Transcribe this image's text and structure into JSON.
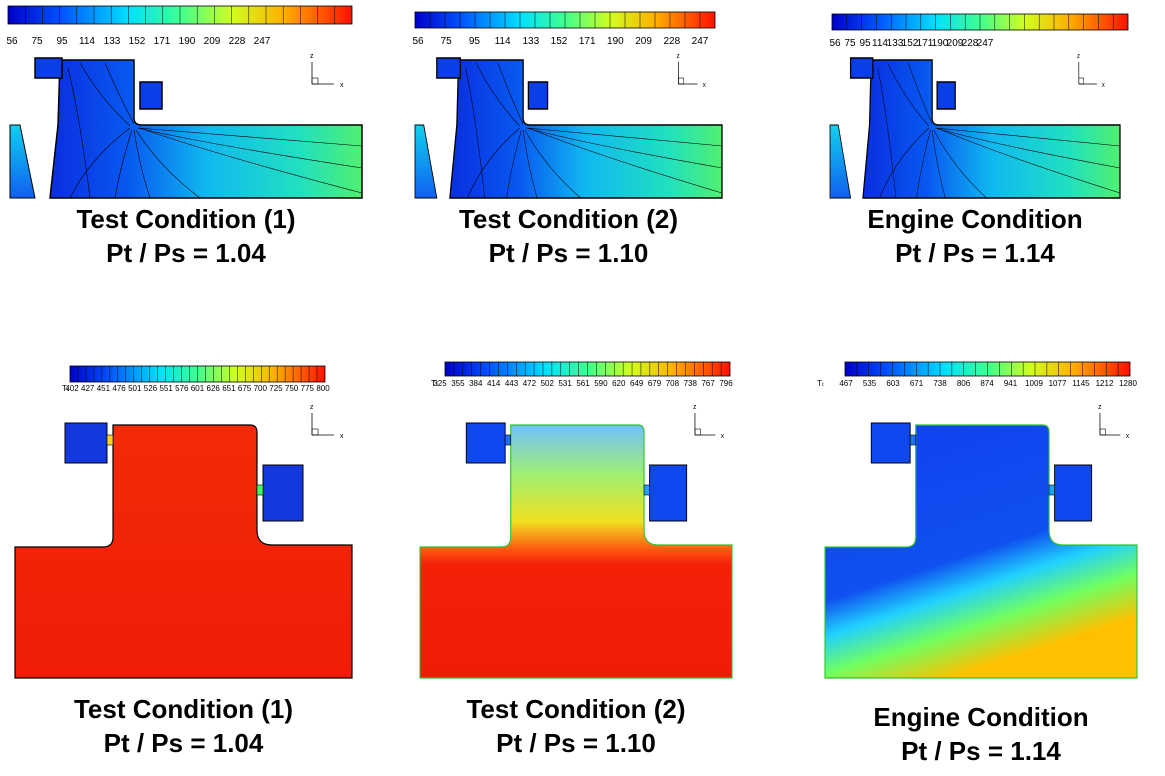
{
  "axes": {
    "vertical": "z",
    "horizontal": "x"
  },
  "panels": [
    {
      "colorbar": {
        "ticks": [
          56,
          75,
          95,
          114,
          133,
          152,
          171,
          190,
          209,
          228,
          247
        ]
      },
      "title": "Test Condition (1)",
      "ratio": "Pt / Ps = 1.04"
    },
    {
      "colorbar": {
        "ticks": [
          56,
          75,
          95,
          114,
          133,
          152,
          171,
          190,
          209,
          228,
          247
        ]
      },
      "title": "Test Condition (2)",
      "ratio": "Pt / Ps = 1.10"
    },
    {
      "colorbar": {
        "ticks": [
          56,
          75,
          95,
          114,
          133,
          152,
          171,
          190,
          209,
          228,
          247
        ]
      },
      "title": "Engine Condition",
      "ratio": "Pt / Ps = 1.14"
    },
    {
      "colorbar": {
        "label": "Tₜ",
        "ticks": [
          402,
          427,
          451,
          476,
          501,
          526,
          551,
          576,
          601,
          626,
          651,
          675,
          700,
          725,
          750,
          775,
          800
        ]
      },
      "title": "Test Condition (1)",
      "ratio": "Pt / Ps = 1.04"
    },
    {
      "colorbar": {
        "label": "Tₜ",
        "ticks": [
          325,
          355,
          384,
          414,
          443,
          472,
          502,
          531,
          561,
          590,
          620,
          649,
          679,
          708,
          738,
          767,
          796
        ]
      },
      "title": "Test Condition (2)",
      "ratio": "Pt / Ps = 1.10"
    },
    {
      "colorbar": {
        "label": "Tₜ",
        "ticks": [
          467,
          535,
          603,
          671,
          738,
          806,
          874,
          941,
          1009,
          1077,
          1145,
          1212,
          1280
        ]
      },
      "title": "Engine Condition",
      "ratio": "Pt / Ps = 1.14"
    }
  ]
}
